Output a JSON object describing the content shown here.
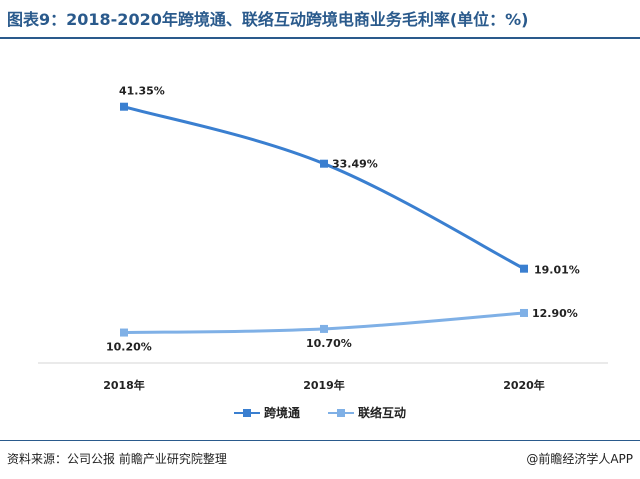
{
  "header": {
    "title": "图表9：2018-2020年跨境通、联络互动跨境电商业务毛利率(单位：%)"
  },
  "chart_data": {
    "type": "line",
    "categories": [
      "2018年",
      "2019年",
      "2020年"
    ],
    "series": [
      {
        "name": "跨境通",
        "values": [
          41.35,
          33.49,
          19.01
        ],
        "labels": [
          "41.35%",
          "33.49%",
          "19.01%"
        ],
        "color": "#3a7fd0"
      },
      {
        "name": "联络互动",
        "values": [
          10.2,
          10.7,
          12.9
        ],
        "labels": [
          "10.20%",
          "10.70%",
          "12.90%"
        ],
        "color": "#7fb0e6"
      }
    ],
    "ylim": [
      6,
      46
    ],
    "grid": false,
    "legend": "bottom"
  },
  "footer": {
    "source": "资料来源：公司公报 前瞻产业研究院整理",
    "credit": "@前瞻经济学人APP"
  }
}
